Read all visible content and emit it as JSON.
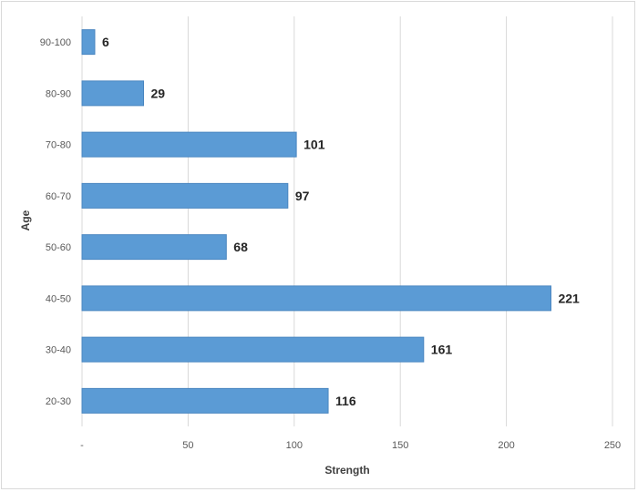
{
  "chart_data": {
    "type": "bar",
    "orientation": "horizontal",
    "categories": [
      "20-30",
      "30-40",
      "40-50",
      "50-60",
      "60-70",
      "70-80",
      "80-90",
      "90-100"
    ],
    "values": [
      116,
      161,
      221,
      68,
      97,
      101,
      29,
      6
    ],
    "xlabel": "Strength",
    "ylabel": "Age",
    "xlim": [
      0,
      250
    ],
    "x_ticks": [
      "-",
      "50",
      "100",
      "150",
      "200",
      "250"
    ],
    "x_tick_values": [
      0,
      50,
      100,
      150,
      200,
      250
    ],
    "grid": "vertical",
    "data_labels": true,
    "bar_color": "#5b9bd5",
    "bar_edge_color": "#4a86c0"
  }
}
